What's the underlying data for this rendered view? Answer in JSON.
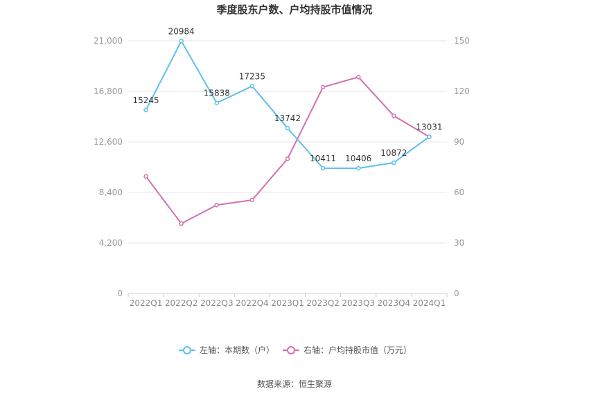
{
  "chart_data": {
    "type": "line",
    "title": "季度股东户数、户均持股市值情况",
    "categories": [
      "2022Q1",
      "2022Q2",
      "2022Q3",
      "2022Q4",
      "2023Q1",
      "2023Q2",
      "2023Q3",
      "2023Q4",
      "2024Q1"
    ],
    "left_axis": {
      "min": 0,
      "max": 21000,
      "ticks": [
        "0",
        "4,200",
        "8,400",
        "12,600",
        "16,800",
        "21,000"
      ],
      "tick_values": [
        0,
        4200,
        8400,
        12600,
        16800,
        21000
      ]
    },
    "right_axis": {
      "min": 0,
      "max": 150,
      "ticks": [
        "0",
        "30",
        "60",
        "90",
        "120",
        "150"
      ],
      "tick_values": [
        0,
        30,
        60,
        90,
        120,
        150
      ]
    },
    "series": [
      {
        "name": "左轴：本期数（户）",
        "axis": "left",
        "color": "#5bc0eb",
        "values": [
          15245,
          20984,
          15838,
          17235,
          13742,
          10411,
          10406,
          10872,
          13031
        ],
        "labels": [
          "15245",
          "20984",
          "15838",
          "17235",
          "13742",
          "10411",
          "10406",
          "10872",
          "13031"
        ]
      },
      {
        "name": "右轴：户均持股市值（万元）",
        "axis": "right",
        "color": "#d36fb0",
        "values": [
          69.5,
          41.5,
          52.5,
          55.5,
          80.0,
          122.5,
          128.5,
          105.5,
          93.0
        ]
      }
    ],
    "grid": true,
    "legend_position": "bottom"
  },
  "source": "数据来源：恒生聚源"
}
